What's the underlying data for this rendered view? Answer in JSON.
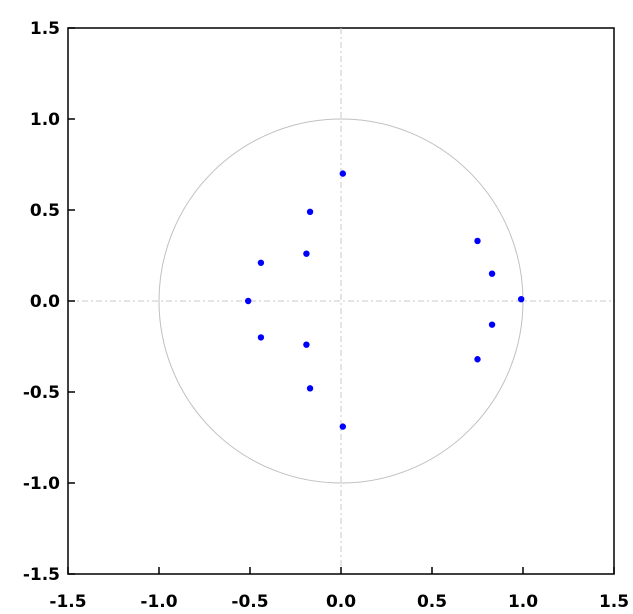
{
  "chart_data": {
    "type": "scatter",
    "title": "",
    "xlabel": "",
    "ylabel": "",
    "xlim": [
      -1.5,
      1.5
    ],
    "ylim": [
      -1.5,
      1.5
    ],
    "x_ticks": [
      -1.5,
      -1.0,
      -0.5,
      0.0,
      0.5,
      1.0,
      1.5
    ],
    "y_ticks": [
      -1.5,
      -1.0,
      -0.5,
      0.0,
      0.5,
      1.0,
      1.5
    ],
    "x_tick_labels": [
      "-1.5",
      "-1.0",
      "-0.5",
      "0.0",
      "0.5",
      "1.0",
      "1.5"
    ],
    "y_tick_labels": [
      "-1.5",
      "-1.0",
      "-0.5",
      "0.0",
      "0.5",
      "1.0",
      "1.5"
    ],
    "unit_circle": true,
    "axis_crosshair": true,
    "grid": false,
    "legend": "none",
    "series": [
      {
        "color": "#0000ff",
        "points": [
          {
            "x": 0.01,
            "y": 0.7
          },
          {
            "x": 0.01,
            "y": -0.69
          },
          {
            "x": -0.17,
            "y": 0.49
          },
          {
            "x": -0.17,
            "y": -0.48
          },
          {
            "x": -0.19,
            "y": 0.26
          },
          {
            "x": -0.19,
            "y": -0.24
          },
          {
            "x": -0.44,
            "y": 0.21
          },
          {
            "x": -0.44,
            "y": -0.2
          },
          {
            "x": -0.51,
            "y": 0.0
          },
          {
            "x": 0.75,
            "y": 0.33
          },
          {
            "x": 0.75,
            "y": -0.32
          },
          {
            "x": 0.83,
            "y": 0.15
          },
          {
            "x": 0.83,
            "y": -0.13
          },
          {
            "x": 0.99,
            "y": 0.01
          }
        ]
      }
    ]
  }
}
